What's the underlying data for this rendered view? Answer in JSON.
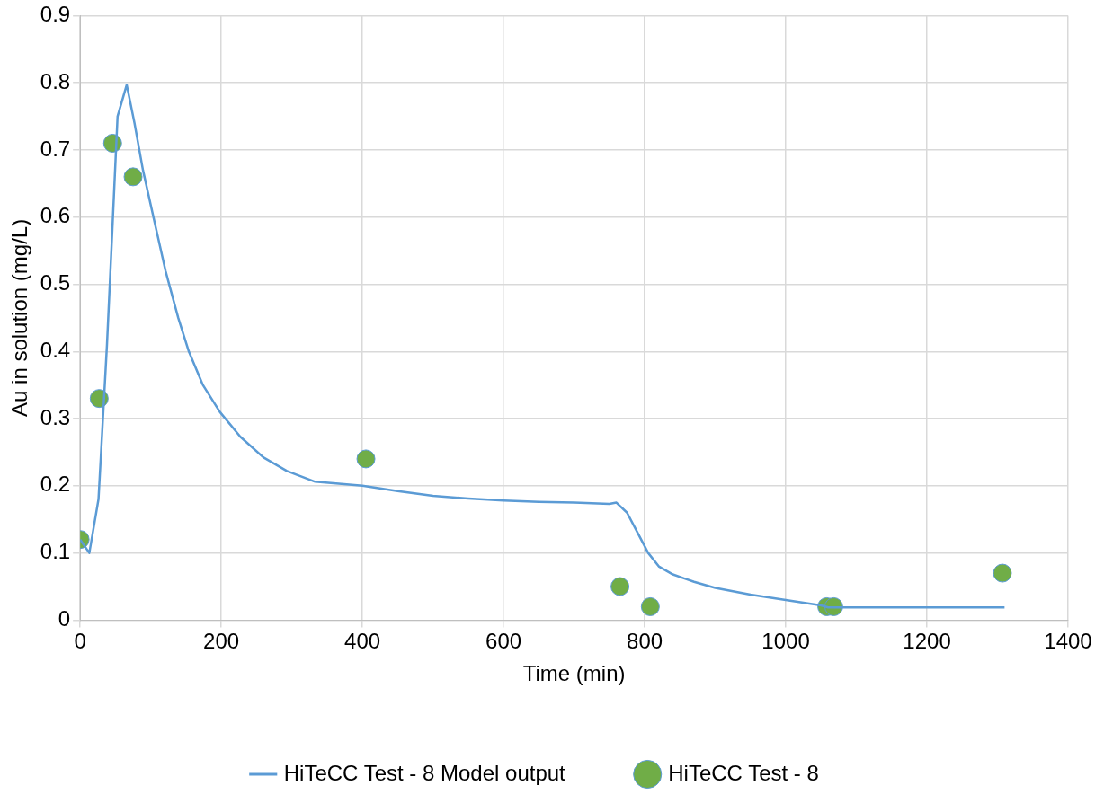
{
  "chart_data": {
    "type": "line",
    "xlabel": "Time (min)",
    "ylabel": "Au in solution (mg/L)",
    "xlim": [
      0,
      1400
    ],
    "xticks": [
      0,
      200,
      400,
      600,
      800,
      1000,
      1200,
      1400
    ],
    "ylim": [
      0,
      0.9
    ],
    "yticks": [
      0,
      0.1,
      0.2,
      0.3,
      0.4,
      0.5,
      0.6,
      0.7,
      0.8,
      0.9
    ],
    "grid": true,
    "legend": "bottom",
    "series": [
      {
        "name": "HiTeCC Test - 8 Model output",
        "type": "line",
        "color": "#5b9bd5",
        "marker": "none",
        "line_style": "solid",
        "x": [
          0,
          13,
          26,
          38,
          46,
          53,
          66,
          77,
          89,
          106,
          121,
          139,
          154,
          174,
          198,
          227,
          260,
          293,
          333,
          400,
          450,
          500,
          550,
          600,
          650,
          700,
          750,
          760,
          775,
          790,
          805,
          820,
          840,
          870,
          900,
          950,
          1000,
          1050,
          1060,
          1100,
          1200,
          1250,
          1310
        ],
        "values": [
          0.12,
          0.1,
          0.18,
          0.41,
          0.59,
          0.75,
          0.797,
          0.74,
          0.67,
          0.59,
          0.52,
          0.45,
          0.4,
          0.35,
          0.31,
          0.273,
          0.242,
          0.222,
          0.206,
          0.2,
          0.192,
          0.185,
          0.181,
          0.178,
          0.176,
          0.175,
          0.173,
          0.175,
          0.16,
          0.13,
          0.1,
          0.08,
          0.068,
          0.057,
          0.048,
          0.038,
          0.03,
          0.022,
          0.019,
          0.019,
          0.019,
          0.019,
          0.019
        ]
      },
      {
        "name": "HiTeCC Test - 8",
        "type": "scatter",
        "color": "#70ad47",
        "marker": "circle",
        "x": [
          0,
          27,
          46,
          75,
          405,
          765,
          808,
          1058,
          1068,
          1307
        ],
        "values": [
          0.12,
          0.33,
          0.71,
          0.66,
          0.24,
          0.05,
          0.02,
          0.02,
          0.02,
          0.07
        ]
      }
    ]
  }
}
